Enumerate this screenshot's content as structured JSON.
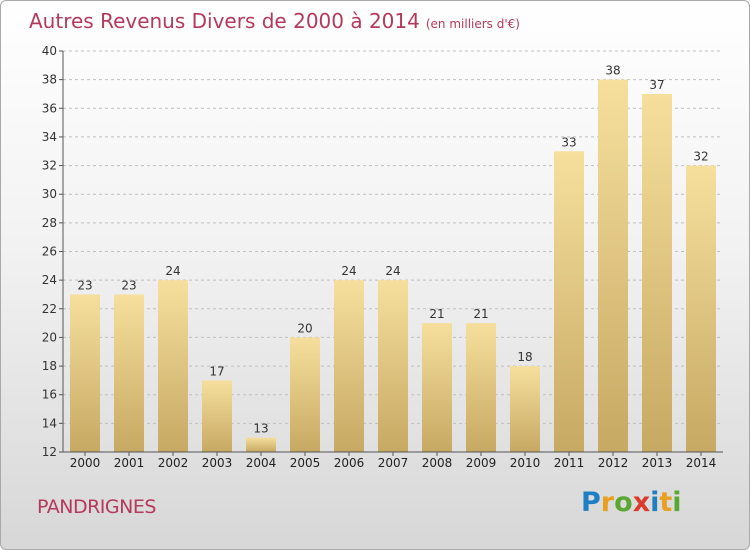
{
  "title": "Autres Revenus Divers de 2000 à 2014",
  "unit_note": "(en milliers d'€)",
  "location": "PANDRIGNES",
  "logo_text": "Proxiti",
  "colors": {
    "title": "#b4395a",
    "bar_light": "#f5dd9a",
    "bar_dark": "#c8ab65",
    "axis": "#555555"
  },
  "chart_data": {
    "type": "bar",
    "title": "Autres Revenus Divers de 2000 à 2014",
    "subtitle": "(en milliers d'€)",
    "categories": [
      "2000",
      "2001",
      "2002",
      "2003",
      "2004",
      "2005",
      "2006",
      "2007",
      "2008",
      "2009",
      "2010",
      "2011",
      "2012",
      "2013",
      "2014"
    ],
    "values": [
      23,
      23,
      24,
      17,
      13,
      20,
      24,
      24,
      21,
      21,
      18,
      33,
      38,
      37,
      32
    ],
    "ylim": [
      12,
      40
    ],
    "yticks": [
      12,
      14,
      16,
      18,
      20,
      22,
      24,
      26,
      28,
      30,
      32,
      34,
      36,
      38,
      40
    ],
    "grid": true,
    "data_labels": true
  }
}
